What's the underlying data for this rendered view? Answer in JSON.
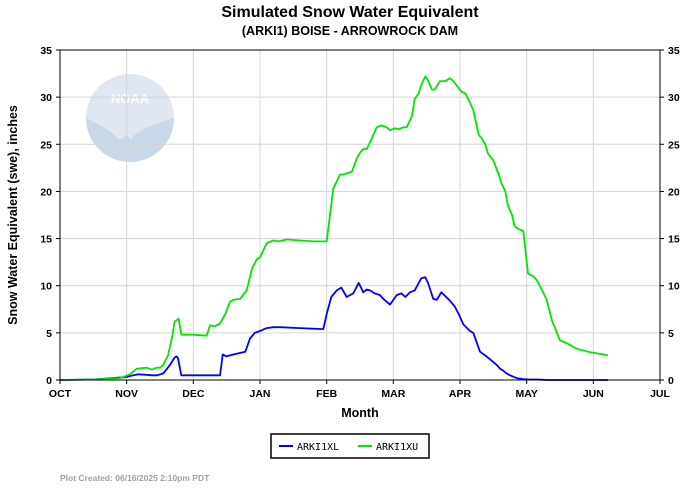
{
  "colors": {
    "background": "#ffffff",
    "grid": "#d3d3d3",
    "axis": "#000000",
    "subtitle": "#1a1acc",
    "series_low": "#0000ff",
    "series_high": "#00e600",
    "footer": "#a0a0a0",
    "logo": "#dfe8f2"
  },
  "logo": {
    "text": "NOAA",
    "icon": "noaa-logo-icon"
  },
  "footer": {
    "text": "Plot Created: 06/16/2025 2:10pm PDT"
  },
  "chart_data": {
    "type": "line",
    "title": "Simulated Snow Water Equivalent",
    "subtitle": "(ARKI1) BOISE - ARROWROCK DAM",
    "xlabel": "Month",
    "ylabel": "Snow Water Equivalent (swe),  inches",
    "x_unit": "months since Oct 1",
    "xlim": [
      0,
      9
    ],
    "ylim": [
      0,
      35
    ],
    "x_ticks": [
      0,
      1,
      2,
      3,
      4,
      5,
      6,
      7,
      8,
      9
    ],
    "x_tick_labels": [
      "OCT",
      "NOV",
      "DEC",
      "JAN",
      "FEB",
      "MAR",
      "APR",
      "MAY",
      "JUN",
      "JUL"
    ],
    "y_ticks": [
      0,
      5,
      10,
      15,
      20,
      25,
      30,
      35
    ],
    "y_tick_labels": [
      "0",
      "5",
      "10",
      "15",
      "20",
      "25",
      "30",
      "35"
    ],
    "grid": true,
    "legend_position": "bottom-center",
    "series": [
      {
        "name": "ARKI1XL",
        "color": "#0000ff",
        "x": [
          0,
          0.5,
          0.98,
          1.1,
          1.18,
          1.3,
          1.38,
          1.46,
          1.55,
          1.65,
          1.72,
          1.75,
          1.77,
          1.82,
          2.1,
          2.4,
          2.42,
          2.44,
          2.5,
          2.6,
          2.78,
          2.85,
          2.92,
          3.0,
          3.1,
          3.2,
          3.3,
          3.6,
          3.95,
          4.0,
          4.07,
          4.15,
          4.22,
          4.3,
          4.35,
          4.4,
          4.48,
          4.55,
          4.6,
          4.65,
          4.72,
          4.8,
          4.85,
          4.95,
          5.05,
          5.12,
          5.18,
          5.25,
          5.32,
          5.38,
          5.42,
          5.48,
          5.52,
          5.6,
          5.65,
          5.72,
          5.78,
          5.85,
          5.92,
          5.98,
          6.05,
          6.15,
          6.2,
          6.3,
          6.38,
          6.45,
          6.5,
          6.55,
          6.6,
          6.65,
          6.68,
          6.72,
          6.78,
          6.85,
          6.95,
          7.05,
          7.15,
          7.25,
          7.3,
          7.4,
          8.0,
          8.22
        ],
        "y": [
          0,
          0.05,
          0.3,
          0.5,
          0.6,
          0.55,
          0.5,
          0.5,
          0.7,
          1.6,
          2.4,
          2.5,
          2.3,
          0.5,
          0.5,
          0.5,
          1.5,
          2.7,
          2.5,
          2.7,
          3.0,
          4.4,
          5.0,
          5.2,
          5.5,
          5.6,
          5.6,
          5.5,
          5.4,
          7.0,
          8.8,
          9.5,
          9.8,
          8.8,
          9.0,
          9.2,
          10.3,
          9.3,
          9.6,
          9.5,
          9.2,
          9.0,
          8.6,
          8.0,
          9.0,
          9.2,
          8.8,
          9.3,
          9.5,
          10.3,
          10.8,
          10.9,
          10.3,
          8.6,
          8.5,
          9.3,
          8.9,
          8.4,
          7.8,
          7.0,
          5.9,
          5.2,
          5.0,
          3.0,
          2.6,
          2.2,
          1.9,
          1.6,
          1.2,
          1.0,
          0.8,
          0.6,
          0.4,
          0.2,
          0.1,
          0.05,
          0.05,
          0.02,
          0.0,
          0.0,
          0.0,
          0.0
        ]
      },
      {
        "name": "ARKI1XU",
        "color": "#00e600",
        "x": [
          0,
          0.5,
          0.9,
          1.05,
          1.15,
          1.3,
          1.38,
          1.45,
          1.5,
          1.55,
          1.62,
          1.68,
          1.72,
          1.78,
          1.82,
          2.0,
          2.2,
          2.25,
          2.32,
          2.4,
          2.48,
          2.55,
          2.6,
          2.7,
          2.8,
          2.88,
          2.95,
          3.0,
          3.1,
          3.2,
          3.28,
          3.4,
          3.6,
          3.8,
          4.0,
          4.05,
          4.1,
          4.2,
          4.25,
          4.38,
          4.45,
          4.5,
          4.55,
          4.6,
          4.65,
          4.75,
          4.82,
          4.9,
          4.95,
          5.02,
          5.08,
          5.15,
          5.2,
          5.28,
          5.32,
          5.38,
          5.42,
          5.48,
          5.52,
          5.58,
          5.62,
          5.7,
          5.78,
          5.85,
          5.9,
          6.02,
          6.08,
          6.15,
          6.2,
          6.28,
          6.32,
          6.38,
          6.42,
          6.5,
          6.58,
          6.62,
          6.68,
          6.72,
          6.78,
          6.82,
          6.88,
          6.95,
          7.02,
          7.1,
          7.15,
          7.22,
          7.3,
          7.38,
          7.42,
          7.5,
          7.6,
          7.68,
          7.72,
          7.8,
          7.88,
          7.92,
          8.0,
          8.08,
          8.15,
          8.22
        ],
        "y": [
          0,
          0.05,
          0.2,
          0.6,
          1.2,
          1.3,
          1.1,
          1.3,
          1.3,
          1.6,
          2.6,
          4.5,
          6.2,
          6.5,
          4.8,
          4.8,
          4.7,
          5.8,
          5.7,
          6.0,
          7.0,
          8.3,
          8.5,
          8.6,
          9.5,
          11.8,
          12.8,
          13.0,
          14.5,
          14.8,
          14.7,
          14.9,
          14.8,
          14.7,
          14.7,
          17.5,
          20.3,
          21.8,
          21.8,
          22.1,
          23.5,
          24.1,
          24.5,
          24.5,
          25.2,
          26.8,
          27.0,
          26.8,
          26.5,
          26.7,
          26.6,
          26.8,
          26.8,
          28.0,
          29.8,
          30.4,
          31.3,
          32.2,
          31.8,
          30.8,
          30.8,
          31.7,
          31.7,
          32.0,
          31.7,
          30.6,
          30.4,
          29.4,
          28.6,
          26.0,
          25.7,
          25.0,
          24.0,
          23.3,
          21.8,
          20.9,
          20.0,
          18.5,
          17.5,
          16.3,
          16.0,
          15.8,
          11.3,
          11.0,
          10.6,
          9.7,
          8.5,
          6.3,
          5.6,
          4.2,
          3.9,
          3.6,
          3.4,
          3.2,
          3.1,
          3.0,
          2.9,
          2.8,
          2.7,
          2.6
        ]
      }
    ]
  }
}
